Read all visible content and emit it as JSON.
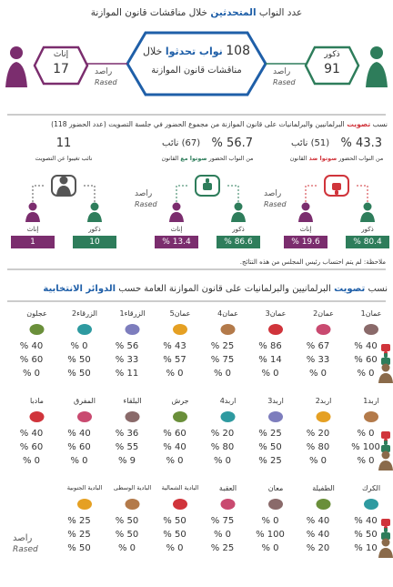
{
  "header": {
    "title_start": "عدد النواب",
    "title_highlight": "المتحدثين",
    "title_end": "خلال مناقشات قانون الموازنة"
  },
  "speakers": {
    "total": "108",
    "total_highlight": "نواب تحدثوا",
    "total_rest": "خلال",
    "total_line2": "مناقشات قانون الموازنة",
    "males_label": "ذكور",
    "males": "91",
    "females_label": "إناث",
    "females": "17"
  },
  "brand": {
    "ar": "راصد",
    "en": "Rased"
  },
  "votes": {
    "title_start": "نسب",
    "title_highlight": "تصويت",
    "title_end": "البرلمانيين والبرلمانيات على قانون الموازنة من مجموع الحضور في جلسة التصويت (عدد الحضور 118)",
    "groups": [
      {
        "percent": "43.3 %",
        "count": "(51) نائب",
        "desc_start": "من النواب الحضور",
        "desc_highlight": "صوتوا ضد",
        "desc_end": "القانون",
        "males_label": "ذكور",
        "males": "80.4 %",
        "females_label": "إناث",
        "females": "19.6 %"
      },
      {
        "percent": "56.7 %",
        "count": "(67) نائب",
        "desc_start": "من النواب الحضور",
        "desc_highlight": "صوتوا مع",
        "desc_end": "القانون",
        "males_label": "ذكور",
        "males": "86.6 %",
        "females_label": "إناث",
        "females": "13.4 %"
      },
      {
        "percent": "11",
        "count": "",
        "desc_start": "نائب تغيبوا عن التصويت",
        "desc_highlight": "",
        "desc_end": "",
        "males_label": "ذكور",
        "males": "10",
        "females_label": "إناث",
        "females": "1"
      }
    ],
    "note": "ملاحظة: لم يتم احتساب رئيس المجلس من هذه النتائج."
  },
  "districts": {
    "title_start": "نسب",
    "title_highlight": "تصويت",
    "title_middle": "البرلمانيين والبرلمانيات على قانون الموازنة العامة حسب",
    "title_end": "الدوائر الانتخابية",
    "rows": [
      [
        {
          "name": "عمان1",
          "against": "40 %",
          "for": "60 %",
          "absent": "0 %"
        },
        {
          "name": "عمان2",
          "against": "67 %",
          "for": "33 %",
          "absent": "0 %"
        },
        {
          "name": "عمان3",
          "against": "86 %",
          "for": "14 %",
          "absent": "0 %"
        },
        {
          "name": "عمان4",
          "against": "25 %",
          "for": "75 %",
          "absent": "0 %"
        },
        {
          "name": "عمان5",
          "against": "43 %",
          "for": "57 %",
          "absent": "0 %"
        },
        {
          "name": "الزرقاء1",
          "against": "56 %",
          "for": "33 %",
          "absent": "11 %"
        },
        {
          "name": "الزرقاء2",
          "against": "0 %",
          "for": "50 %",
          "absent": "50 %"
        },
        {
          "name": "عجلون",
          "against": "40 %",
          "for": "60 %",
          "absent": "0 %"
        }
      ],
      [
        {
          "name": "اربد1",
          "against": "0 %",
          "for": "100 %",
          "absent": "0 %"
        },
        {
          "name": "اربد2",
          "against": "20 %",
          "for": "80 %",
          "absent": "0 %"
        },
        {
          "name": "اربد3",
          "against": "25 %",
          "for": "50 %",
          "absent": "25 %"
        },
        {
          "name": "اربد4",
          "against": "20 %",
          "for": "80 %",
          "absent": "0 %"
        },
        {
          "name": "جرش",
          "against": "60 %",
          "for": "40 %",
          "absent": "0 %"
        },
        {
          "name": "البلقاء",
          "against": "36 %",
          "for": "55 %",
          "absent": "9 %"
        },
        {
          "name": "المفرق",
          "against": "40 %",
          "for": "60 %",
          "absent": "0 %"
        },
        {
          "name": "مادبا",
          "against": "40 %",
          "for": "60 %",
          "absent": "0 %"
        }
      ],
      [
        {
          "name": "الكرك",
          "against": "40 %",
          "for": "50 %",
          "absent": "10 %"
        },
        {
          "name": "الطفيلة",
          "against": "40 %",
          "for": "40 %",
          "absent": "20 %"
        },
        {
          "name": "معان",
          "against": "0 %",
          "for": "100 %",
          "absent": "0 %"
        },
        {
          "name": "العقبة",
          "against": "75 %",
          "for": "0 %",
          "absent": "25 %"
        },
        {
          "name": "البادية الشمالية",
          "against": "50 %",
          "for": "50 %",
          "absent": "0 %"
        },
        {
          "name": "البادية الوسطى",
          "against": "50 %",
          "for": "50 %",
          "absent": "0 %"
        },
        {
          "name": "البادية الجنوبية",
          "against": "25 %",
          "for": "25 %",
          "absent": "50 %"
        }
      ]
    ]
  }
}
